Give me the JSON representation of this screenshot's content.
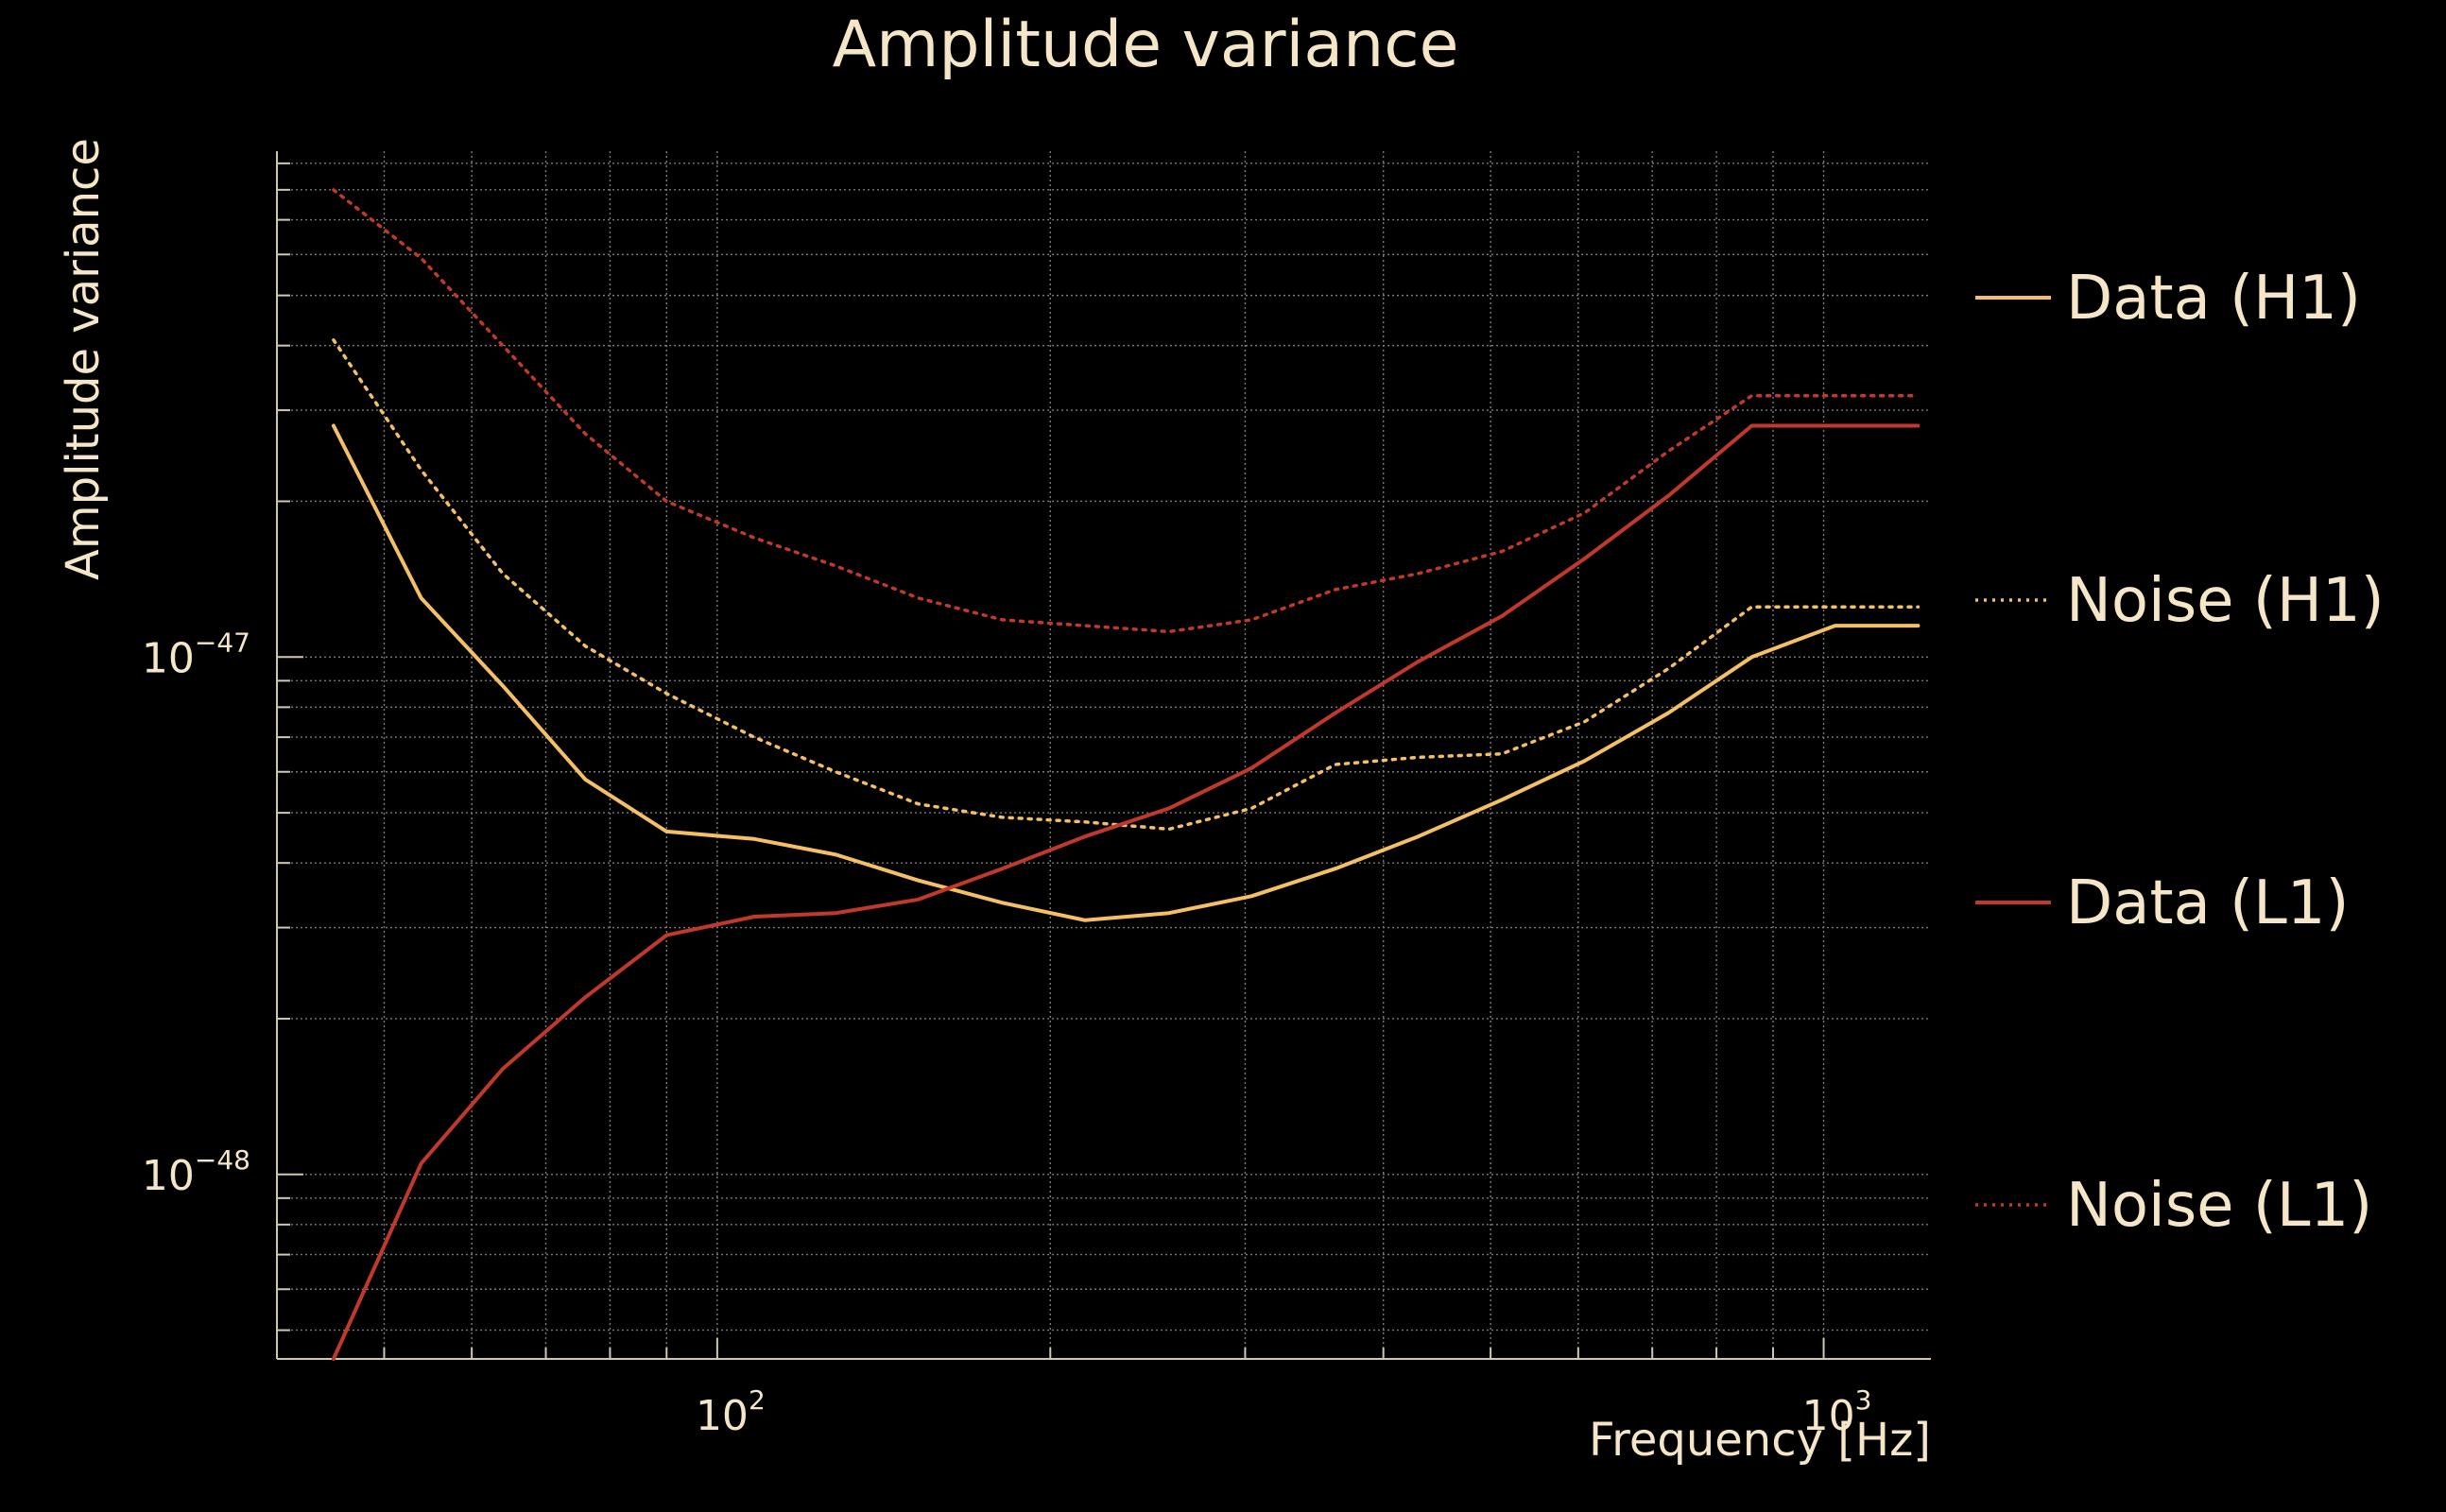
{
  "chart_data": {
    "type": "line",
    "title": "Amplitude variance",
    "xlabel": "Frequency [Hz]",
    "ylabel": "Amplitude variance",
    "xscale": "log",
    "yscale": "log",
    "xlim": [
      40,
      1250
    ],
    "ylim": [
      4.4e-49,
      9.5e-47
    ],
    "grid": true,
    "legend_position": "right",
    "x_ticks": [
      {
        "value": 100,
        "base": "10",
        "exp": "2"
      },
      {
        "value": 1000,
        "base": "10",
        "exp": "3"
      }
    ],
    "y_ticks": [
      {
        "value": 1e-47,
        "base": "10",
        "exp": "−47"
      },
      {
        "value": 1e-48,
        "base": "10",
        "exp": "−48"
      }
    ],
    "x": [
      45,
      54,
      64,
      76,
      90,
      108,
      128,
      152,
      181,
      215,
      256,
      304,
      362,
      430,
      512,
      608,
      724,
      861,
      1024,
      1217
    ],
    "series": [
      {
        "name": "Data (H1)",
        "color": "#f4c063",
        "dash": "solid",
        "values": [
          2.8e-47,
          1.3e-47,
          8.8e-48,
          5.8e-48,
          4.6e-48,
          4.45e-48,
          4.15e-48,
          3.7e-48,
          3.35e-48,
          3.1e-48,
          3.2e-48,
          3.45e-48,
          3.9e-48,
          4.5e-48,
          5.3e-48,
          6.3e-48,
          7.8e-48,
          1e-47,
          1.15e-47,
          1.15e-47
        ]
      },
      {
        "name": "Noise (H1)",
        "color": "#f4c063",
        "dash": "dotted",
        "values": [
          4.1e-47,
          2.3e-47,
          1.45e-47,
          1.05e-47,
          8.5e-48,
          7e-48,
          6e-48,
          5.2e-48,
          4.9e-48,
          4.8e-48,
          4.65e-48,
          5.1e-48,
          6.2e-48,
          6.4e-48,
          6.5e-48,
          7.5e-48,
          9.5e-48,
          1.25e-47,
          1.25e-47,
          1.25e-47
        ]
      },
      {
        "name": "Data (L1)",
        "color": "#c0392b",
        "dash": "solid",
        "values": [
          4.4e-49,
          1.05e-48,
          1.6e-48,
          2.2e-48,
          2.9e-48,
          3.15e-48,
          3.2e-48,
          3.4e-48,
          3.9e-48,
          4.5e-48,
          5.1e-48,
          6.1e-48,
          7.8e-48,
          9.8e-48,
          1.2e-47,
          1.55e-47,
          2.05e-47,
          2.8e-47,
          2.8e-47,
          2.8e-47
        ]
      },
      {
        "name": "Noise (L1)",
        "color": "#c0392b",
        "dash": "dotted",
        "values": [
          8e-47,
          5.9e-47,
          4e-47,
          2.7e-47,
          2e-47,
          1.7e-47,
          1.5e-47,
          1.3e-47,
          1.18e-47,
          1.15e-47,
          1.12e-47,
          1.18e-47,
          1.35e-47,
          1.45e-47,
          1.6e-47,
          1.9e-47,
          2.5e-47,
          3.2e-47,
          3.2e-47,
          3.2e-47
        ]
      }
    ]
  }
}
